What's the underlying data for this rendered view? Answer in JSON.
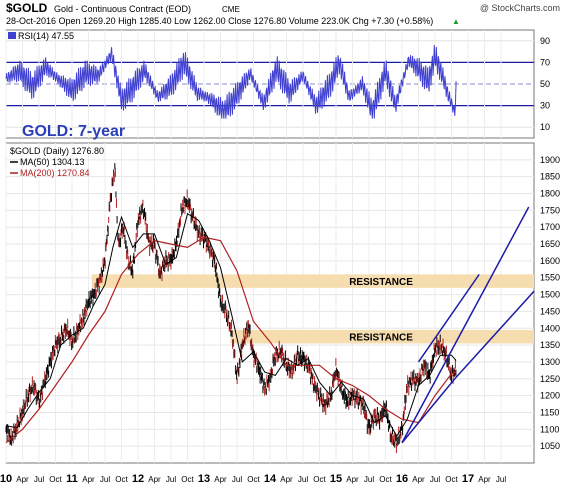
{
  "header": {
    "symbol": "$GOLD",
    "name": "Gold - Continuous Contract (EOD)",
    "exchange": "CME",
    "copyright": "@ StockCharts.com",
    "stats": "28-Oct-2016  Open 1269.20  High 1285.40  Low 1262.00  Close 1276.80  Volume 223.0K  Chg +7.30 (+0.58%)",
    "stats_arrow": "▲"
  },
  "rsi": {
    "legend": "RSI(14) 47.55",
    "ticks": [
      90,
      70,
      50,
      30,
      10
    ],
    "line_color": "#3f3fd0"
  },
  "price_panel": {
    "overlay_title": "GOLD: 7-year",
    "legend_price": "$GOLD (Daily) 1276.80",
    "legend_ma50": "MA(50) 1304.13",
    "legend_ma200": "MA(200) 1270.84",
    "ma50_color": "#000000",
    "ma200_color": "#b02020",
    "channel_color": "#1a1aa8",
    "zone_color": "#f6ddb0",
    "resistance_labels": [
      "RESISTANCE",
      "RESISTANCE"
    ]
  },
  "chart_data": {
    "type": "line",
    "title": "GOLD: 7-year",
    "ylim": [
      1000,
      1950
    ],
    "yticks": [
      1050,
      1100,
      1150,
      1200,
      1250,
      1300,
      1350,
      1400,
      1450,
      1500,
      1550,
      1600,
      1650,
      1700,
      1750,
      1800,
      1850,
      1900
    ],
    "xlim": [
      2010.0,
      2018.0
    ],
    "x_tick_labels": [
      {
        "t": 2010.0,
        "label": "10",
        "major": true
      },
      {
        "t": 2010.25,
        "label": "Apr"
      },
      {
        "t": 2010.5,
        "label": "Jul"
      },
      {
        "t": 2010.75,
        "label": "Oct"
      },
      {
        "t": 2011.0,
        "label": "11",
        "major": true
      },
      {
        "t": 2011.25,
        "label": "Apr"
      },
      {
        "t": 2011.5,
        "label": "Jul"
      },
      {
        "t": 2011.75,
        "label": "Oct"
      },
      {
        "t": 2012.0,
        "label": "12",
        "major": true
      },
      {
        "t": 2012.25,
        "label": "Apr"
      },
      {
        "t": 2012.5,
        "label": "Jul"
      },
      {
        "t": 2012.75,
        "label": "Oct"
      },
      {
        "t": 2013.0,
        "label": "13",
        "major": true
      },
      {
        "t": 2013.25,
        "label": "Apr"
      },
      {
        "t": 2013.5,
        "label": "Jul"
      },
      {
        "t": 2013.75,
        "label": "Oct"
      },
      {
        "t": 2014.0,
        "label": "14",
        "major": true
      },
      {
        "t": 2014.25,
        "label": "Apr"
      },
      {
        "t": 2014.5,
        "label": "Jul"
      },
      {
        "t": 2014.75,
        "label": "Oct"
      },
      {
        "t": 2015.0,
        "label": "15",
        "major": true
      },
      {
        "t": 2015.25,
        "label": "Apr"
      },
      {
        "t": 2015.5,
        "label": "Jul"
      },
      {
        "t": 2015.75,
        "label": "Oct"
      },
      {
        "t": 2016.0,
        "label": "16",
        "major": true
      },
      {
        "t": 2016.25,
        "label": "Apr"
      },
      {
        "t": 2016.5,
        "label": "Jul"
      },
      {
        "t": 2016.75,
        "label": "Oct"
      },
      {
        "t": 2017.0,
        "label": "17",
        "major": true
      },
      {
        "t": 2017.25,
        "label": "Apr"
      },
      {
        "t": 2017.5,
        "label": "Jul"
      }
    ],
    "series": [
      {
        "name": "$GOLD (Daily) 1276.80",
        "color": "#000000",
        "points": [
          [
            2010.0,
            1100
          ],
          [
            2010.08,
            1070
          ],
          [
            2010.17,
            1110
          ],
          [
            2010.25,
            1150
          ],
          [
            2010.33,
            1200
          ],
          [
            2010.42,
            1230
          ],
          [
            2010.5,
            1180
          ],
          [
            2010.58,
            1240
          ],
          [
            2010.67,
            1300
          ],
          [
            2010.75,
            1350
          ],
          [
            2010.83,
            1370
          ],
          [
            2010.92,
            1400
          ],
          [
            2011.0,
            1360
          ],
          [
            2011.08,
            1390
          ],
          [
            2011.17,
            1430
          ],
          [
            2011.25,
            1480
          ],
          [
            2011.33,
            1500
          ],
          [
            2011.42,
            1540
          ],
          [
            2011.5,
            1600
          ],
          [
            2011.58,
            1780
          ],
          [
            2011.65,
            1880
          ],
          [
            2011.7,
            1650
          ],
          [
            2011.78,
            1700
          ],
          [
            2011.85,
            1600
          ],
          [
            2011.92,
            1570
          ],
          [
            2012.0,
            1720
          ],
          [
            2012.08,
            1760
          ],
          [
            2012.17,
            1650
          ],
          [
            2012.25,
            1650
          ],
          [
            2012.33,
            1560
          ],
          [
            2012.42,
            1600
          ],
          [
            2012.5,
            1600
          ],
          [
            2012.58,
            1650
          ],
          [
            2012.67,
            1760
          ],
          [
            2012.75,
            1780
          ],
          [
            2012.83,
            1730
          ],
          [
            2012.92,
            1680
          ],
          [
            2013.0,
            1670
          ],
          [
            2013.08,
            1640
          ],
          [
            2013.17,
            1590
          ],
          [
            2013.25,
            1480
          ],
          [
            2013.33,
            1450
          ],
          [
            2013.42,
            1390
          ],
          [
            2013.5,
            1250
          ],
          [
            2013.58,
            1350
          ],
          [
            2013.67,
            1410
          ],
          [
            2013.75,
            1320
          ],
          [
            2013.83,
            1280
          ],
          [
            2013.92,
            1220
          ],
          [
            2014.0,
            1250
          ],
          [
            2014.08,
            1320
          ],
          [
            2014.17,
            1330
          ],
          [
            2014.25,
            1290
          ],
          [
            2014.33,
            1270
          ],
          [
            2014.42,
            1320
          ],
          [
            2014.5,
            1310
          ],
          [
            2014.58,
            1290
          ],
          [
            2014.67,
            1230
          ],
          [
            2014.75,
            1200
          ],
          [
            2014.83,
            1170
          ],
          [
            2014.92,
            1200
          ],
          [
            2015.0,
            1280
          ],
          [
            2015.08,
            1220
          ],
          [
            2015.17,
            1180
          ],
          [
            2015.25,
            1200
          ],
          [
            2015.33,
            1190
          ],
          [
            2015.42,
            1170
          ],
          [
            2015.5,
            1100
          ],
          [
            2015.58,
            1140
          ],
          [
            2015.67,
            1130
          ],
          [
            2015.75,
            1170
          ],
          [
            2015.83,
            1080
          ],
          [
            2015.92,
            1060
          ],
          [
            2016.0,
            1100
          ],
          [
            2016.08,
            1230
          ],
          [
            2016.17,
            1250
          ],
          [
            2016.25,
            1240
          ],
          [
            2016.33,
            1290
          ],
          [
            2016.42,
            1260
          ],
          [
            2016.5,
            1340
          ],
          [
            2016.58,
            1350
          ],
          [
            2016.67,
            1320
          ],
          [
            2016.75,
            1260
          ],
          [
            2016.82,
            1276.8
          ]
        ]
      },
      {
        "name": "MA(50) 1304.13",
        "color": "#000000",
        "points": [
          [
            2010.0,
            1110
          ],
          [
            2010.17,
            1105
          ],
          [
            2010.33,
            1160
          ],
          [
            2010.5,
            1210
          ],
          [
            2010.67,
            1250
          ],
          [
            2010.83,
            1350
          ],
          [
            2011.0,
            1380
          ],
          [
            2011.17,
            1400
          ],
          [
            2011.33,
            1470
          ],
          [
            2011.5,
            1530
          ],
          [
            2011.62,
            1640
          ],
          [
            2011.75,
            1730
          ],
          [
            2011.92,
            1640
          ],
          [
            2012.08,
            1680
          ],
          [
            2012.25,
            1680
          ],
          [
            2012.42,
            1590
          ],
          [
            2012.58,
            1610
          ],
          [
            2012.75,
            1740
          ],
          [
            2012.92,
            1720
          ],
          [
            2013.08,
            1660
          ],
          [
            2013.25,
            1580
          ],
          [
            2013.42,
            1440
          ],
          [
            2013.58,
            1300
          ],
          [
            2013.75,
            1330
          ],
          [
            2013.92,
            1270
          ],
          [
            2014.08,
            1260
          ],
          [
            2014.25,
            1310
          ],
          [
            2014.42,
            1290
          ],
          [
            2014.58,
            1310
          ],
          [
            2014.75,
            1240
          ],
          [
            2014.92,
            1200
          ],
          [
            2015.08,
            1240
          ],
          [
            2015.25,
            1200
          ],
          [
            2015.42,
            1190
          ],
          [
            2015.58,
            1120
          ],
          [
            2015.75,
            1140
          ],
          [
            2015.92,
            1080
          ],
          [
            2016.08,
            1130
          ],
          [
            2016.25,
            1230
          ],
          [
            2016.42,
            1260
          ],
          [
            2016.58,
            1320
          ],
          [
            2016.75,
            1320
          ],
          [
            2016.82,
            1304
          ]
        ]
      },
      {
        "name": "MA(200) 1270.84",
        "color": "#b02020",
        "points": [
          [
            2010.0,
            1060
          ],
          [
            2010.25,
            1100
          ],
          [
            2010.5,
            1160
          ],
          [
            2010.75,
            1230
          ],
          [
            2011.0,
            1300
          ],
          [
            2011.25,
            1380
          ],
          [
            2011.5,
            1450
          ],
          [
            2011.75,
            1560
          ],
          [
            2012.0,
            1620
          ],
          [
            2012.25,
            1660
          ],
          [
            2012.5,
            1650
          ],
          [
            2012.75,
            1640
          ],
          [
            2013.0,
            1670
          ],
          [
            2013.25,
            1660
          ],
          [
            2013.5,
            1570
          ],
          [
            2013.75,
            1420
          ],
          [
            2014.0,
            1360
          ],
          [
            2014.25,
            1290
          ],
          [
            2014.5,
            1290
          ],
          [
            2014.75,
            1290
          ],
          [
            2015.0,
            1250
          ],
          [
            2015.25,
            1230
          ],
          [
            2015.5,
            1200
          ],
          [
            2015.75,
            1160
          ],
          [
            2016.0,
            1130
          ],
          [
            2016.25,
            1120
          ],
          [
            2016.5,
            1200
          ],
          [
            2016.75,
            1265
          ],
          [
            2016.82,
            1270.84
          ]
        ]
      }
    ],
    "rsi_series": {
      "name": "RSI(14) 47.55",
      "ylim": [
        0,
        100
      ],
      "points": [
        [
          2010.0,
          55
        ],
        [
          2010.2,
          62
        ],
        [
          2010.4,
          48
        ],
        [
          2010.6,
          66
        ],
        [
          2010.8,
          54
        ],
        [
          2011.0,
          44
        ],
        [
          2011.2,
          60
        ],
        [
          2011.4,
          58
        ],
        [
          2011.6,
          78
        ],
        [
          2011.75,
          35
        ],
        [
          2011.9,
          45
        ],
        [
          2012.1,
          63
        ],
        [
          2012.3,
          38
        ],
        [
          2012.5,
          48
        ],
        [
          2012.7,
          70
        ],
        [
          2012.9,
          42
        ],
        [
          2013.1,
          36
        ],
        [
          2013.3,
          24
        ],
        [
          2013.5,
          40
        ],
        [
          2013.7,
          60
        ],
        [
          2013.9,
          32
        ],
        [
          2014.1,
          64
        ],
        [
          2014.3,
          42
        ],
        [
          2014.5,
          58
        ],
        [
          2014.7,
          30
        ],
        [
          2014.9,
          48
        ],
        [
          2015.05,
          70
        ],
        [
          2015.2,
          38
        ],
        [
          2015.4,
          50
        ],
        [
          2015.55,
          24
        ],
        [
          2015.75,
          62
        ],
        [
          2015.9,
          30
        ],
        [
          2016.1,
          72
        ],
        [
          2016.25,
          64
        ],
        [
          2016.4,
          52
        ],
        [
          2016.5,
          76
        ],
        [
          2016.6,
          60
        ],
        [
          2016.7,
          40
        ],
        [
          2016.8,
          24
        ],
        [
          2016.82,
          47.55
        ]
      ]
    },
    "resistance_zones": [
      {
        "label": "RESISTANCE",
        "low": 1520,
        "high": 1560,
        "x_start": 2011.3,
        "x_end": 2018.0
      },
      {
        "label": "RESISTANCE",
        "low": 1355,
        "high": 1395,
        "x_start": 2013.4,
        "x_end": 2018.0
      }
    ],
    "channel_lines": [
      {
        "x1": 2016.0,
        "y1": 1060,
        "x2": 2017.92,
        "y2": 1760
      },
      {
        "x1": 2016.0,
        "y1": 1060,
        "x2": 2016.8,
        "y2": 1250
      },
      {
        "x1": 2016.8,
        "y1": 1250,
        "x2": 2018.0,
        "y2": 1510
      },
      {
        "x1": 2016.25,
        "y1": 1300,
        "x2": 2017.17,
        "y2": 1560
      }
    ],
    "grid": true
  }
}
